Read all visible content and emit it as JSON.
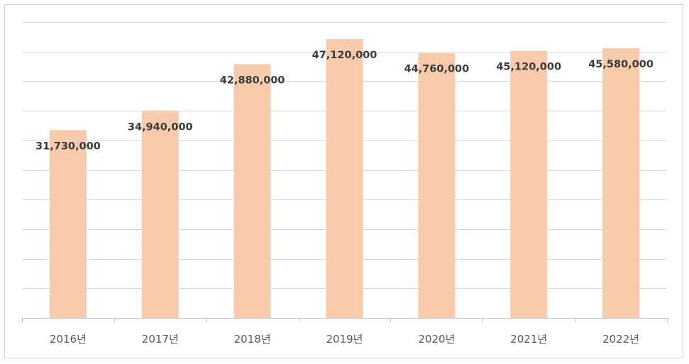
{
  "chart_data": {
    "type": "bar",
    "categories": [
      "2016년",
      "2017년",
      "2018년",
      "2019년",
      "2020년",
      "2021년",
      "2022년"
    ],
    "values": [
      31730000,
      34940000,
      42880000,
      47120000,
      44760000,
      45120000,
      45580000
    ],
    "data_labels": [
      "31,730,000",
      "34,940,000",
      "42,880,000",
      "47,120,000",
      "44,760,000",
      "45,120,000",
      "45,580,000"
    ],
    "title": "",
    "xlabel": "",
    "ylabel": "",
    "ylim": [
      0,
      50000000
    ],
    "y_gridline_step": 5000000,
    "grid": true,
    "y_axis_tick_labels_shown": false,
    "legend": "none",
    "colors": {
      "bar": "#f8cbad",
      "grid": "#d9d9d9",
      "axis": "#bfbfbf",
      "label": "#3a3a3a",
      "category_text": "#595959"
    }
  }
}
